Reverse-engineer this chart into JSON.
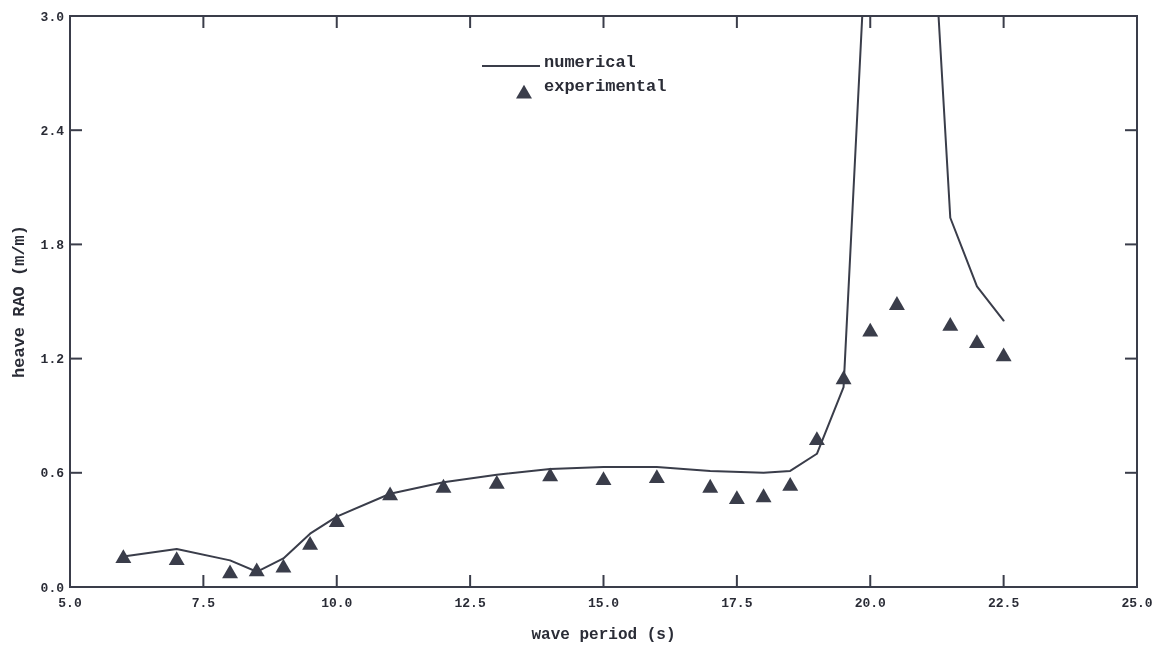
{
  "chart_data": {
    "type": "line",
    "xlabel": "wave period  (s)",
    "ylabel": "heave RAO  (m/m)",
    "xlim": [
      5.0,
      25.0
    ],
    "xticks": [
      {
        "value": 5,
        "label": "5.0"
      },
      {
        "value": 7.5,
        "label": "7.5"
      },
      {
        "value": 10,
        "label": "10.0"
      },
      {
        "value": 12.5,
        "label": "12.5"
      },
      {
        "value": 15,
        "label": "15.0"
      },
      {
        "value": 17.5,
        "label": "17.5"
      },
      {
        "value": 20,
        "label": "20.0"
      },
      {
        "value": 22.5,
        "label": "22.5"
      },
      {
        "value": 25,
        "label": "25.0"
      }
    ],
    "ylim": [
      0,
      3.0
    ],
    "yticks": [
      {
        "value": 0,
        "label": "0.0"
      },
      {
        "value": 0.6,
        "label": "0.6"
      },
      {
        "value": 1.2,
        "label": "1.2"
      },
      {
        "value": 1.8,
        "label": "1.8"
      },
      {
        "value": 2.4,
        "label": "2.4"
      },
      {
        "value": 3,
        "label": "3.0"
      }
    ],
    "grid": false,
    "legend": "top",
    "series": [
      {
        "name": "numerical",
        "color": "#3a3d4a",
        "marker": "none",
        "line_style": "solid",
        "x": [
          6,
          7,
          8,
          8.5,
          9,
          9.5,
          10,
          11,
          12,
          13,
          14,
          15,
          16,
          17,
          18,
          18.5,
          19,
          19.5,
          19.85,
          20.7,
          21.28,
          21.5,
          22,
          22.5
        ],
        "values": [
          0.16,
          0.2,
          0.14,
          0.08,
          0.15,
          0.28,
          0.37,
          0.49,
          0.55,
          0.59,
          0.62,
          0.63,
          0.63,
          0.61,
          0.6,
          0.61,
          0.7,
          1.05,
          3.0,
          null,
          3.0,
          1.94,
          1.58,
          1.4
        ]
      },
      {
        "name": "experimental",
        "type": "scatter",
        "color": "#3a3d4a",
        "marker": "triangle",
        "x": [
          6,
          7,
          8,
          8.5,
          9,
          9.5,
          10,
          11,
          12,
          13,
          14,
          15,
          16,
          17,
          17.5,
          18,
          18.5,
          19,
          19.5,
          20,
          20.5,
          21.5,
          22,
          22.5
        ],
        "values": [
          0.15,
          0.14,
          0.07,
          0.08,
          0.1,
          0.22,
          0.34,
          0.48,
          0.52,
          0.54,
          0.58,
          0.56,
          0.57,
          0.52,
          0.46,
          0.47,
          0.53,
          0.77,
          1.09,
          1.34,
          1.48,
          1.37,
          1.28,
          1.21
        ]
      }
    ]
  }
}
